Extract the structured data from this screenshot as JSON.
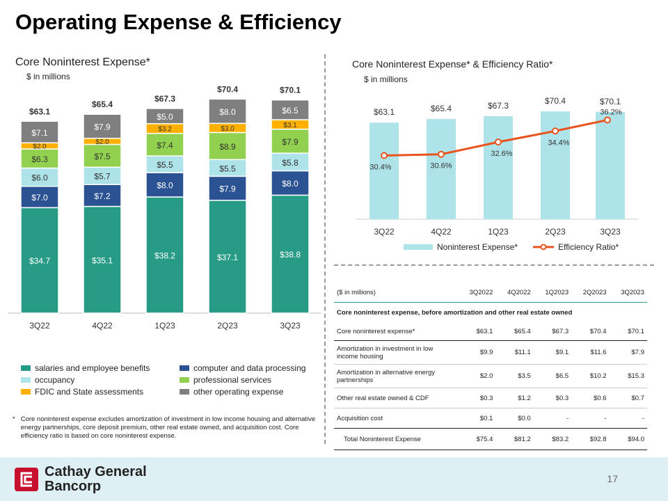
{
  "title": "Operating Expense & Efficiency",
  "left_chart": {
    "subtitle": "Core Noninterest Expense*",
    "unit": "$ in millions"
  },
  "right_chart": {
    "subtitle": "Core Noninterest Expense* & Efficiency Ratio*",
    "unit": "$ in millions"
  },
  "chart_data": [
    {
      "type": "bar",
      "stacked": true,
      "categories": [
        "3Q22",
        "4Q22",
        "1Q23",
        "2Q23",
        "3Q23"
      ],
      "totals": [
        "$63.1",
        "$65.4",
        "$67.3",
        "$70.4",
        "$70.1"
      ],
      "series": [
        {
          "name": "salaries and employee benefits",
          "color": "#289b86",
          "values": [
            34.7,
            35.1,
            38.2,
            37.1,
            38.8
          ]
        },
        {
          "name": "computer and data processing",
          "color": "#2b5393",
          "values": [
            7.0,
            7.2,
            8.0,
            7.9,
            8.0
          ]
        },
        {
          "name": "occupancy",
          "color": "#aee3ea",
          "values": [
            6.0,
            5.7,
            5.5,
            5.5,
            5.8
          ]
        },
        {
          "name": "professional services",
          "color": "#92d050",
          "values": [
            6.3,
            7.5,
            7.4,
            8.9,
            7.9
          ]
        },
        {
          "name": "FDIC and State assessments",
          "color": "#ffb000",
          "values": [
            2.0,
            2.0,
            3.2,
            3.0,
            3.1
          ]
        },
        {
          "name": "other operating expense",
          "color": "#7f7f7f",
          "values": [
            7.1,
            7.9,
            5.0,
            8.0,
            6.5
          ]
        }
      ]
    },
    {
      "type": "bar+line",
      "categories": [
        "3Q22",
        "4Q22",
        "1Q23",
        "2Q23",
        "3Q23"
      ],
      "series": [
        {
          "name": "Noninterest Expense*",
          "color": "#aee3ea",
          "values": [
            63.1,
            65.4,
            67.3,
            70.4,
            70.1
          ]
        },
        {
          "name": "Efficiency Ratio*",
          "color": "#e8531e",
          "values": [
            30.4,
            30.6,
            32.6,
            34.4,
            36.2
          ],
          "unit": "%"
        }
      ]
    }
  ],
  "note": {
    "marker": "*",
    "text": "Core noninterest expense excludes amortization of investment in low income housing and alternative energy partnerships, core deposit premium, other real estate owned, and acquisition cost. Core efficiency ratio is based on core noninterest expense."
  },
  "table": {
    "header": [
      "($ in millions)",
      "3Q2022",
      "4Q2022",
      "1Q2023",
      "2Q2023",
      "3Q2023"
    ],
    "section": "Core noninterest expense, before amortization and other real estate owned",
    "rows": [
      [
        "Core noninterest expense*",
        "$63.1",
        "$65.4",
        "$67.3",
        "$70.4",
        "$70.1"
      ],
      [
        "Amortization in investment in low income housing",
        "$9.9",
        "$11.1",
        "$9.1",
        "$11.6",
        "$7.9"
      ],
      [
        "Amortization in alternative energy partnerships",
        "$2.0",
        "$3.5",
        "$6.5",
        "$10.2",
        "$15.3"
      ],
      [
        "Other real estate owned & CDF",
        "$0.3",
        "$1.2",
        "$0.3",
        "$0.6",
        "$0.7"
      ],
      [
        "Acquisition cost",
        "$0.1",
        "$0.0",
        "-",
        "-",
        "-"
      ]
    ],
    "total": [
      "Total Noninterest Expense",
      "$75.4",
      "$81.2",
      "$83.2",
      "$92.8",
      "$94.0"
    ]
  },
  "footer": {
    "logo": "Cathay General Bancorp",
    "page": "17"
  }
}
